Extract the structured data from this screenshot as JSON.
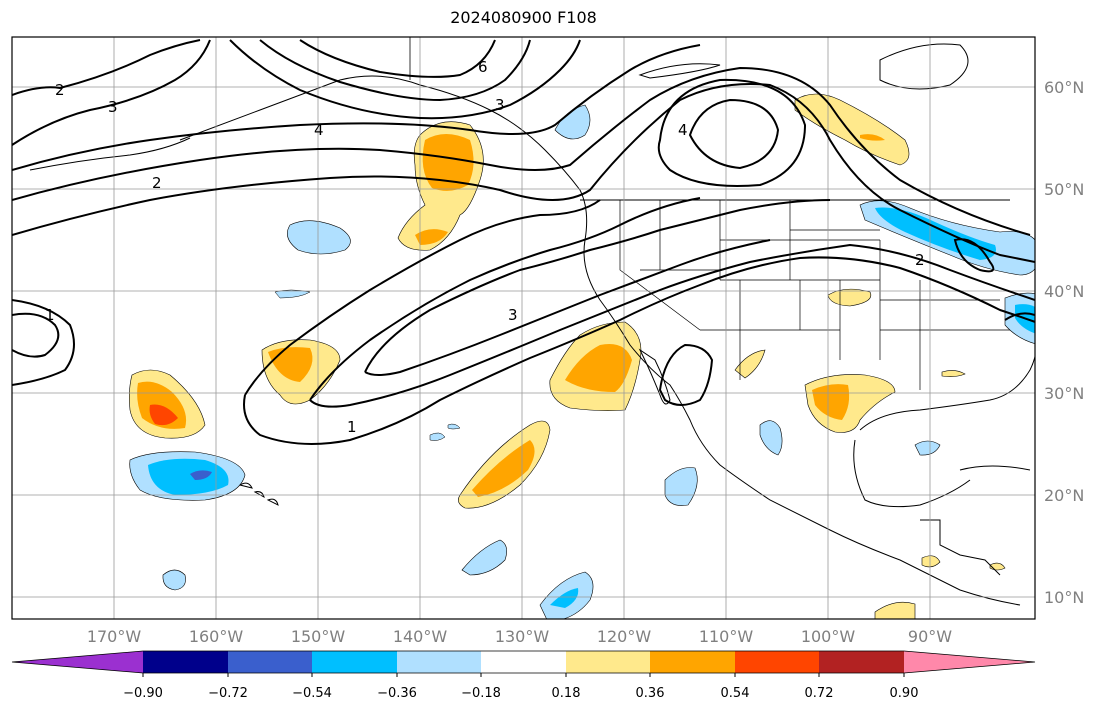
{
  "title": "2024080900 F108",
  "map": {
    "lat_ticks": [
      "60°N",
      "50°N",
      "40°N",
      "30°N",
      "20°N",
      "10°N"
    ],
    "lon_ticks": [
      "170°W",
      "160°W",
      "150°W",
      "140°W",
      "130°W",
      "120°W",
      "110°W",
      "100°W",
      "90°W"
    ],
    "contour_labels": [
      "2",
      "3",
      "2",
      "4",
      "6",
      "3",
      "4",
      "1",
      "3",
      "1",
      "2"
    ]
  },
  "colorbar": {
    "labels": [
      "−0.90",
      "−0.72",
      "−0.54",
      "−0.36",
      "−0.18",
      "0.18",
      "0.36",
      "0.54",
      "0.72",
      "0.90"
    ],
    "colors": [
      "#9b30d0",
      "#00008b",
      "#3a5fcd",
      "#00bfff",
      "#b0e0ff",
      "#ffffff",
      "#ffe98c",
      "#ffa500",
      "#ff4500",
      "#b22222",
      "#ff88aa"
    ]
  },
  "colors": {
    "neg_light": "#b0e0ff",
    "neg_mid": "#00bfff",
    "neg_dark": "#3a5fcd",
    "pos_light": "#ffe98c",
    "pos_mid": "#ffa500",
    "pos_dark": "#ff4500"
  }
}
